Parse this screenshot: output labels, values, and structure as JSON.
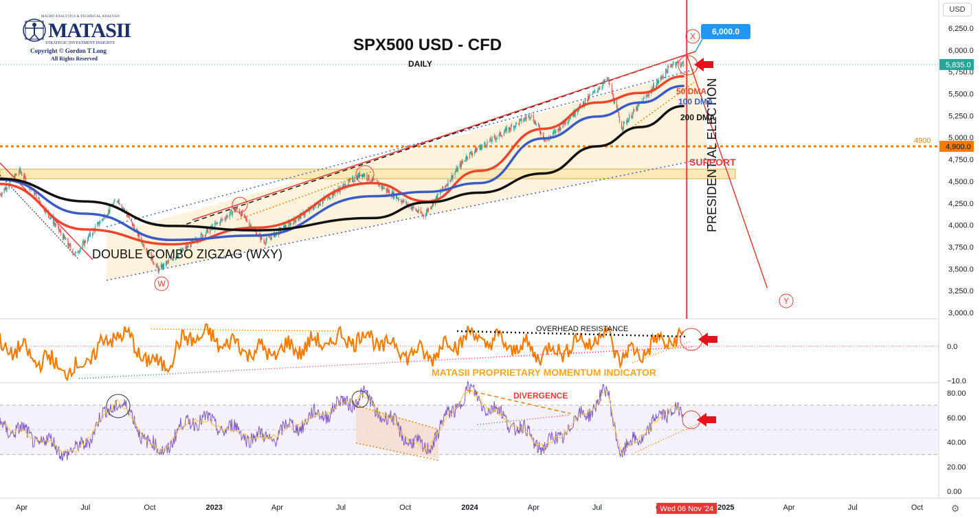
{
  "logo": {
    "tagline": "MACRO ANALYTICS & TECHNICAL ANALYSIS",
    "brand": "MATASII",
    "subtitle": "STRATEGIC INVESTMENT INSIGHTS",
    "copyright": "Copyright © Gordon T Long",
    "rights": "All Rights Reserved"
  },
  "header": {
    "title": "SPX500 USD - CFD",
    "timeframe": "DAILY",
    "currency_button": "USD"
  },
  "colors": {
    "price_up": "#26a69a",
    "price_down": "#ef5350",
    "ma50": "#f0442c",
    "ma100": "#3a5bc7",
    "ma200": "#111111",
    "momentum": "#f57c00",
    "rsi": "#7e57c2",
    "rsi_signal": "#f5c542",
    "resistance": "#f57c00",
    "label_red": "#e53935",
    "callout_blue": "#2196f3",
    "zone_fill": "#fdf0d5"
  },
  "chart_data": [
    {
      "type": "candlestick",
      "title": "SPX500 USD - CFD",
      "subtitle": "DAILY",
      "ylim": [
        3000,
        6250
      ],
      "yticks": [
        "6,250.0",
        "6,000.0",
        "5,750.0",
        "5,500.0",
        "5,250.0",
        "5,000.0",
        "4,750.0",
        "4,500.0",
        "4,250.0",
        "4,000.0",
        "3,750.0",
        "3,500.0",
        "3,250.0",
        "3,000.0"
      ],
      "price_key_points": {
        "x": [
          "2022-03-01",
          "2022-03-29",
          "2022-06-16",
          "2022-08-16",
          "2022-10-13",
          "2023-02-02",
          "2023-03-13",
          "2023-07-31",
          "2023-10-27",
          "2023-12-28",
          "2024-03-28",
          "2024-04-19",
          "2024-07-16",
          "2024-08-05",
          "2024-10-18",
          "2024-11-01"
        ],
        "close": [
          4350,
          4620,
          3660,
          4300,
          3490,
          4190,
          3810,
          4590,
          4110,
          4790,
          5260,
          4960,
          5670,
          5120,
          5860,
          5835
        ]
      },
      "moving_averages": [
        {
          "name": "50 DMA",
          "x": [
            "2022-03-01",
            "2022-07-01",
            "2022-11-01",
            "2023-03-01",
            "2023-08-15",
            "2023-11-01",
            "2024-01-15",
            "2024-04-15",
            "2024-07-01",
            "2024-09-01",
            "2024-11-01"
          ],
          "y": [
            4470,
            3950,
            3780,
            3970,
            4480,
            4270,
            4620,
            5100,
            5400,
            5510,
            5700
          ]
        },
        {
          "name": "100 DMA",
          "x": [
            "2022-03-01",
            "2022-07-01",
            "2022-11-01",
            "2023-03-01",
            "2023-08-15",
            "2023-11-01",
            "2024-01-15",
            "2024-04-15",
            "2024-07-01",
            "2024-09-01",
            "2024-11-01"
          ],
          "y": [
            4520,
            4130,
            3830,
            3880,
            4330,
            4380,
            4480,
            4990,
            5240,
            5400,
            5590
          ]
        },
        {
          "name": "200 DMA",
          "x": [
            "2022-03-01",
            "2022-07-01",
            "2022-11-01",
            "2023-03-01",
            "2023-08-15",
            "2023-11-01",
            "2024-01-15",
            "2024-04-15",
            "2024-07-01",
            "2024-09-01",
            "2024-11-01"
          ],
          "y": [
            4530,
            4270,
            3990,
            3940,
            4080,
            4260,
            4370,
            4590,
            4900,
            5120,
            5360
          ]
        }
      ],
      "horizontal_levels": [
        {
          "label": "4900",
          "value": 4900
        },
        {
          "label": "SUPPORT",
          "from": 4530,
          "to": 4640
        }
      ],
      "price_labels": {
        "last": "5,835.0",
        "level": "4,900.0",
        "target": "6,000.0"
      },
      "annotations": [
        "DOUBLE COMBO ZIGZAG (WXY)",
        "PRESIDENTIAL ELECTION",
        "SUPPORT",
        "50 DMA",
        "100 DMA",
        "200 DMA",
        "W",
        "X",
        "Y"
      ],
      "event_marker": {
        "x": "2024-11-06",
        "label": "Wed 06 Nov '24"
      },
      "projection": {
        "x": [
          "2024-11-06",
          "2025-03-01"
        ],
        "y": [
          5950,
          3280
        ]
      }
    },
    {
      "type": "line",
      "title": "MATASII PROPRIETARY MOMENTUM INDICATOR",
      "ylim": [
        -10,
        10
      ],
      "yticks": [
        "0.0",
        "−10.0"
      ],
      "annotations": [
        "OVERHEAD RESISTANCE"
      ],
      "series": [
        {
          "x": [
            "2022-03-01",
            "2022-06-16",
            "2022-08-16",
            "2022-10-13",
            "2022-12-01",
            "2023-03-13",
            "2023-07-31",
            "2023-10-27",
            "2023-12-28",
            "2024-04-19",
            "2024-07-16",
            "2024-08-05",
            "2024-10-18",
            "2024-11-01"
          ],
          "y": [
            0.5,
            -7.5,
            4.5,
            -6.5,
            3.5,
            -2,
            3,
            -3,
            3,
            -2,
            3.5,
            -3.5,
            2.5,
            1.5
          ]
        }
      ]
    },
    {
      "type": "line",
      "title": "",
      "ylim": [
        0,
        80
      ],
      "yticks": [
        "80.00",
        "60.00",
        "40.00",
        "20.00",
        "0.00"
      ],
      "annotations": [
        "DIVERGENCE"
      ],
      "series": [
        {
          "x": [
            "2022-03-01",
            "2022-06-16",
            "2022-08-16",
            "2022-10-13",
            "2022-12-01",
            "2023-03-13",
            "2023-07-31",
            "2023-10-27",
            "2023-12-28",
            "2024-04-19",
            "2024-07-16",
            "2024-08-05",
            "2024-10-18",
            "2024-11-01"
          ],
          "y": [
            55,
            30,
            75,
            30,
            60,
            42,
            78,
            32,
            82,
            35,
            80,
            30,
            70,
            60
          ]
        }
      ],
      "bands": [
        30,
        70
      ]
    }
  ],
  "x_axis": {
    "ticks": [
      "Apr",
      "Jul",
      "Oct",
      "2023",
      "Apr",
      "Jul",
      "Oct",
      "2024",
      "Apr",
      "Jul",
      "Oct",
      "2025",
      "Apr",
      "Jul",
      "Oct"
    ],
    "tick_dates": [
      "2022-04-01",
      "2022-07-01",
      "2022-10-01",
      "2023-01-01",
      "2023-04-01",
      "2023-07-01",
      "2023-10-01",
      "2024-01-01",
      "2024-04-01",
      "2024-07-01",
      "2024-10-01",
      "2025-01-01",
      "2025-04-01",
      "2025-07-01",
      "2025-10-01"
    ],
    "range": [
      "2022-03-01",
      "2025-11-01"
    ]
  },
  "icons": {
    "timezone": "globe-icon"
  }
}
